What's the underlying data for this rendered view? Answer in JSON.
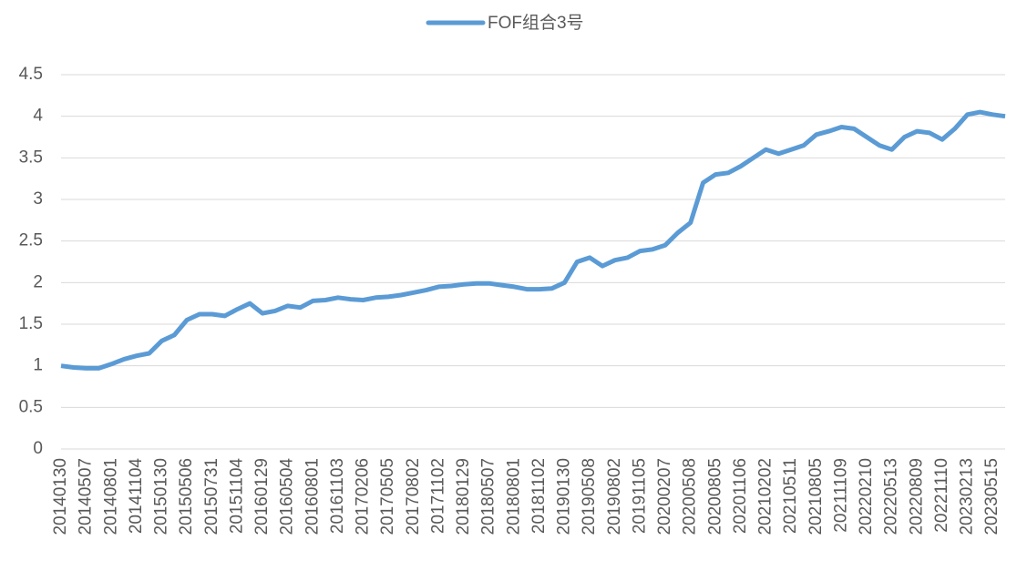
{
  "chart_data": {
    "type": "line",
    "categories": [
      "20140130",
      null,
      "20140507",
      null,
      "20140801",
      null,
      "20141104",
      null,
      "20150130",
      null,
      "20150506",
      null,
      "20150731",
      null,
      "20151104",
      null,
      "20160129",
      null,
      "20160504",
      null,
      "20160801",
      null,
      "20161103",
      null,
      "20170206",
      null,
      "20170505",
      null,
      "20170802",
      null,
      "20171102",
      null,
      "20180129",
      null,
      "20180507",
      null,
      "20180801",
      null,
      "20181102",
      null,
      "20190130",
      null,
      "20190508",
      null,
      "20190802",
      null,
      "20191105",
      null,
      "20200207",
      null,
      "20200508",
      null,
      "20200805",
      null,
      "20201106",
      null,
      "20210202",
      null,
      "20210511",
      null,
      "20210805",
      null,
      "20211109",
      null,
      "20220210",
      null,
      "20220513",
      null,
      "20220809",
      null,
      "20221110",
      null,
      "20230213",
      null,
      "20230515",
      null
    ],
    "series": [
      {
        "name": "FOF组合3号",
        "color": "#5b9bd5",
        "values": [
          1.0,
          0.98,
          0.97,
          0.97,
          1.02,
          1.08,
          1.12,
          1.15,
          1.3,
          1.37,
          1.55,
          1.62,
          1.62,
          1.6,
          1.68,
          1.75,
          1.63,
          1.66,
          1.72,
          1.7,
          1.78,
          1.79,
          1.82,
          1.8,
          1.79,
          1.82,
          1.83,
          1.85,
          1.88,
          1.91,
          1.95,
          1.96,
          1.98,
          1.99,
          1.99,
          1.97,
          1.95,
          1.92,
          1.92,
          1.93,
          2.0,
          2.25,
          2.3,
          2.2,
          2.27,
          2.3,
          2.38,
          2.4,
          2.45,
          2.6,
          2.72,
          3.2,
          3.3,
          3.32,
          3.4,
          3.5,
          3.6,
          3.55,
          3.6,
          3.65,
          3.78,
          3.82,
          3.87,
          3.85,
          3.75,
          3.65,
          3.6,
          3.75,
          3.82,
          3.8,
          3.72,
          3.85,
          4.02,
          4.05,
          4.02,
          4.0
        ]
      }
    ],
    "ylim": [
      0,
      4.5
    ],
    "yticks": [
      0,
      0.5,
      1,
      1.5,
      2,
      2.5,
      3,
      3.5,
      4,
      4.5
    ],
    "grid": true,
    "legend": "top"
  }
}
